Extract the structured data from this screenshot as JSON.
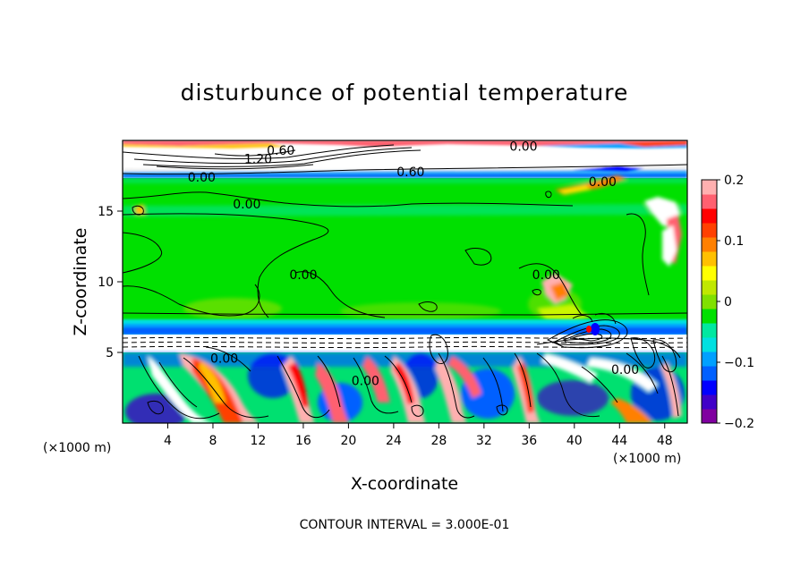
{
  "chart_data": {
    "type": "heatmap",
    "title": "disturbunce of potential temperature",
    "xlabel": "X-coordinate",
    "ylabel": "Z-coordinate",
    "x_unit": "(×1000 m)",
    "y_unit": "(×1000 m)",
    "xlim": [
      0,
      50
    ],
    "ylim": [
      0,
      20
    ],
    "x_ticks": [
      4,
      8,
      12,
      16,
      20,
      24,
      28,
      32,
      36,
      40,
      44,
      48
    ],
    "y_ticks": [
      5,
      10,
      15
    ],
    "colorbar": {
      "range": [
        -0.2,
        0.2
      ],
      "ticks": [
        0.2,
        0.1,
        0,
        -0.1,
        -0.2
      ],
      "tick_labels": [
        "0.2",
        "0.1",
        "0",
        "−0.1",
        "−0.2"
      ],
      "colors": [
        "#8000a0",
        "#4000c8",
        "#0000ff",
        "#0060ff",
        "#00a0ff",
        "#00e0e0",
        "#00e8a0",
        "#00e000",
        "#80e000",
        "#c0e800",
        "#ffff00",
        "#ffc000",
        "#ff8000",
        "#ff4000",
        "#ff0000",
        "#ff6070",
        "#ffb0b0"
      ]
    },
    "contour_interval_text": "CONTOUR INTERVAL = 3.000E-01",
    "contour_labels": [
      {
        "text": "0.60",
        "x": 14.0,
        "y": 19.3
      },
      {
        "text": "1.20",
        "x": 12.0,
        "y": 18.7
      },
      {
        "text": "0.00",
        "x": 35.5,
        "y": 19.6
      },
      {
        "text": "0.60",
        "x": 25.5,
        "y": 17.8
      },
      {
        "text": "0.00",
        "x": 7.0,
        "y": 17.4
      },
      {
        "text": "0.00",
        "x": 42.5,
        "y": 17.1
      },
      {
        "text": "0.00",
        "x": 11.0,
        "y": 15.5
      },
      {
        "text": "0.00",
        "x": 16.0,
        "y": 10.5
      },
      {
        "text": "0.00",
        "x": 37.5,
        "y": 10.5
      },
      {
        "text": "0.00",
        "x": 9.0,
        "y": 4.6
      },
      {
        "text": "0.00",
        "x": 21.5,
        "y": 3.0
      },
      {
        "text": "0.00",
        "x": 44.5,
        "y": 3.8
      }
    ],
    "field_features": {
      "stratosphere_band": [
        17.3,
        20
      ],
      "upper_troposphere_value": 0.0,
      "cyan_blue_band": [
        5.8,
        7.2
      ],
      "white_dashed_band": [
        5.0,
        5.8
      ],
      "convective_layer": [
        0,
        5.0
      ]
    }
  }
}
